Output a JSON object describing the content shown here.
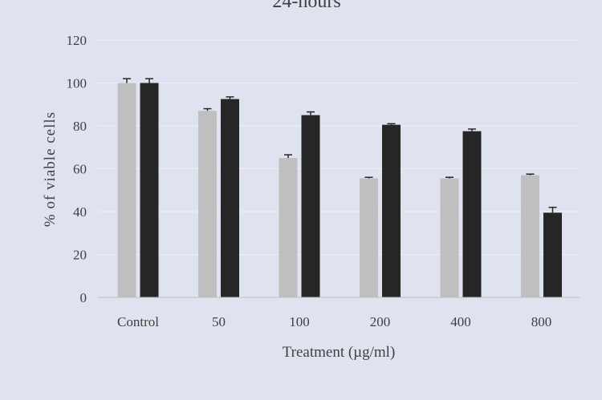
{
  "chart_data": {
    "type": "bar",
    "title": "24-hours",
    "xlabel": "Treatment (µg/ml)",
    "ylabel": "% of viable cells",
    "ylim": [
      0,
      120
    ],
    "yticks": [
      0,
      20,
      40,
      60,
      80,
      100,
      120
    ],
    "grid": true,
    "categories": [
      "Control",
      "50",
      "100",
      "200",
      "400",
      "800"
    ],
    "series": [
      {
        "values": [
          100,
          87,
          65,
          55.5,
          55.5,
          57
        ],
        "errors": [
          2,
          1,
          1.5,
          0.5,
          0.5,
          0.5
        ],
        "color": "#bfbfbf"
      },
      {
        "values": [
          100,
          92.5,
          85,
          80.5,
          77.5,
          39.5
        ],
        "errors": [
          2,
          1,
          1.5,
          0.5,
          1,
          2.5
        ],
        "color": "#262626"
      }
    ]
  }
}
